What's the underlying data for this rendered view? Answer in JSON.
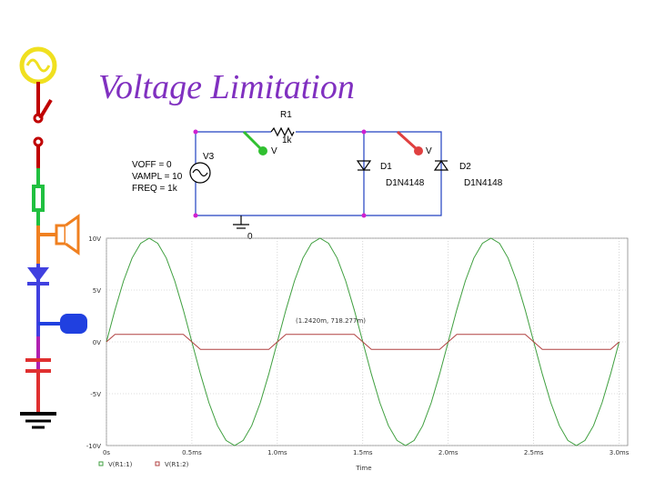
{
  "title": "Voltage Limitation",
  "schematic": {
    "r1_name": "R1",
    "r1_value": "1k",
    "source_name": "V3",
    "source_params": [
      "VOFF = 0",
      "VAMPL = 10",
      "FREQ = 1k"
    ],
    "d1_name": "D1",
    "d1_model": "D1N4148",
    "d2_name": "D2",
    "d2_model": "D1N4148",
    "ground": "0",
    "probes": [
      "V",
      "V"
    ]
  },
  "chart_data": {
    "type": "line",
    "xlabel": "Time",
    "annotations": [
      "(1.2420m, 718.277m)"
    ],
    "x": [
      0,
      0.05,
      0.1,
      0.15,
      0.2,
      0.25,
      0.3,
      0.35,
      0.4,
      0.45,
      0.5,
      0.55,
      0.6,
      0.65,
      0.7,
      0.75,
      0.8,
      0.85,
      0.9,
      0.95,
      1,
      1.05,
      1.1,
      1.15,
      1.2,
      1.25,
      1.3,
      1.35,
      1.4,
      1.45,
      1.5,
      1.55,
      1.6,
      1.65,
      1.7,
      1.75,
      1.8,
      1.85,
      1.9,
      1.95,
      2,
      2.05,
      2.1,
      2.15,
      2.2,
      2.25,
      2.3,
      2.35,
      2.4,
      2.45,
      2.5,
      2.55,
      2.6,
      2.65,
      2.7,
      2.75,
      2.8,
      2.85,
      2.9,
      2.95,
      3
    ],
    "series": [
      {
        "name": "V(R1:1)",
        "color": "#3f9f3f",
        "values": [
          0,
          3.09,
          5.88,
          8.09,
          9.51,
          10,
          9.51,
          8.09,
          5.88,
          3.09,
          0,
          -3.09,
          -5.88,
          -8.09,
          -9.51,
          -10,
          -9.51,
          -8.09,
          -5.88,
          -3.09,
          0,
          3.09,
          5.88,
          8.09,
          9.51,
          10,
          9.51,
          8.09,
          5.88,
          3.09,
          0,
          -3.09,
          -5.88,
          -8.09,
          -9.51,
          -10,
          -9.51,
          -8.09,
          -5.88,
          -3.09,
          0,
          3.09,
          5.88,
          8.09,
          9.51,
          10,
          9.51,
          8.09,
          5.88,
          3.09,
          0,
          -3.09,
          -5.88,
          -8.09,
          -9.51,
          -10,
          -9.51,
          -8.09,
          -5.88,
          -3.09,
          0
        ]
      },
      {
        "name": "V(R1:2)",
        "color": "#b04040",
        "values": [
          0,
          0.72,
          0.72,
          0.72,
          0.72,
          0.72,
          0.72,
          0.72,
          0.72,
          0.72,
          0,
          -0.72,
          -0.72,
          -0.72,
          -0.72,
          -0.72,
          -0.72,
          -0.72,
          -0.72,
          -0.72,
          0,
          0.72,
          0.72,
          0.72,
          0.72,
          0.72,
          0.72,
          0.72,
          0.72,
          0.72,
          0,
          -0.72,
          -0.72,
          -0.72,
          -0.72,
          -0.72,
          -0.72,
          -0.72,
          -0.72,
          -0.72,
          0,
          0.72,
          0.72,
          0.72,
          0.72,
          0.72,
          0.72,
          0.72,
          0.72,
          0.72,
          0,
          -0.72,
          -0.72,
          -0.72,
          -0.72,
          -0.72,
          -0.72,
          -0.72,
          -0.72,
          -0.72,
          0
        ]
      }
    ],
    "xlim": [
      0,
      3.05
    ],
    "ylim": [
      -10,
      10
    ],
    "xticks": [
      {
        "value": 0,
        "label": "0s"
      },
      {
        "value": 0.5,
        "label": "0.5ms"
      },
      {
        "value": 1,
        "label": "1.0ms"
      },
      {
        "value": 1.5,
        "label": "1.5ms"
      },
      {
        "value": 2,
        "label": "2.0ms"
      },
      {
        "value": 2.5,
        "label": "2.5ms"
      },
      {
        "value": 3,
        "label": "3.0ms"
      }
    ],
    "yticks": [
      {
        "value": 10,
        "label": "10V"
      },
      {
        "value": 5,
        "label": "5V"
      },
      {
        "value": 0,
        "label": "0V"
      },
      {
        "value": -5,
        "label": "-5V"
      },
      {
        "value": -10,
        "label": "-10V"
      }
    ],
    "grid": true
  }
}
